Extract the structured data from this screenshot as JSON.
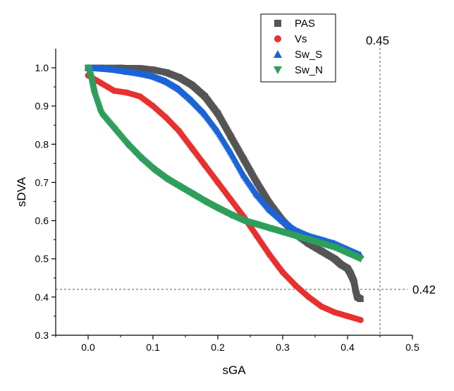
{
  "chart_data": {
    "type": "scatter",
    "title": "",
    "xlabel": "sGA",
    "ylabel": "sDVA",
    "xlim": [
      -0.05,
      0.5
    ],
    "ylim": [
      0.3,
      1.05
    ],
    "xticks": [
      "0.0",
      "0.1",
      "0.2",
      "0.3",
      "0.4",
      "0.5"
    ],
    "yticks": [
      "0.3",
      "0.4",
      "0.5",
      "0.6",
      "0.7",
      "0.8",
      "0.9",
      "1.0"
    ],
    "grid": false,
    "legend_position": "top-right",
    "reference_lines": [
      {
        "orientation": "vertical",
        "value": 0.45,
        "label": "0.45"
      },
      {
        "orientation": "horizontal",
        "value": 0.42,
        "label": "0.42"
      }
    ],
    "series": [
      {
        "name": "PAS",
        "marker": "square",
        "color": "#555555",
        "x": [
          0.0,
          0.02,
          0.05,
          0.08,
          0.1,
          0.12,
          0.14,
          0.16,
          0.18,
          0.2,
          0.22,
          0.24,
          0.26,
          0.28,
          0.3,
          0.32,
          0.34,
          0.36,
          0.38,
          0.39,
          0.4,
          0.405,
          0.41,
          0.412,
          0.415,
          0.42
        ],
        "y": [
          1.0,
          1.0,
          1.0,
          0.999,
          0.995,
          0.988,
          0.975,
          0.955,
          0.925,
          0.88,
          0.82,
          0.76,
          0.7,
          0.645,
          0.6,
          0.565,
          0.54,
          0.52,
          0.5,
          0.485,
          0.475,
          0.46,
          0.44,
          0.42,
          0.4,
          0.395
        ]
      },
      {
        "name": "Vs",
        "marker": "circle",
        "color": "#e8302f",
        "x": [
          0.0,
          0.02,
          0.04,
          0.06,
          0.08,
          0.1,
          0.12,
          0.14,
          0.16,
          0.18,
          0.2,
          0.22,
          0.24,
          0.26,
          0.28,
          0.3,
          0.32,
          0.34,
          0.36,
          0.38,
          0.4,
          0.42
        ],
        "y": [
          0.98,
          0.96,
          0.94,
          0.935,
          0.925,
          0.9,
          0.87,
          0.835,
          0.79,
          0.745,
          0.7,
          0.655,
          0.61,
          0.56,
          0.51,
          0.465,
          0.43,
          0.4,
          0.375,
          0.36,
          0.35,
          0.34
        ]
      },
      {
        "name": "Sw_S",
        "marker": "triangle-up",
        "color": "#1b64d8",
        "x": [
          0.0,
          0.02,
          0.04,
          0.06,
          0.08,
          0.1,
          0.12,
          0.14,
          0.16,
          0.18,
          0.2,
          0.22,
          0.24,
          0.26,
          0.28,
          0.3,
          0.32,
          0.34,
          0.36,
          0.38,
          0.4,
          0.42
        ],
        "y": [
          1.0,
          0.998,
          0.995,
          0.99,
          0.985,
          0.978,
          0.965,
          0.945,
          0.915,
          0.88,
          0.835,
          0.78,
          0.72,
          0.67,
          0.63,
          0.6,
          0.575,
          0.56,
          0.55,
          0.54,
          0.525,
          0.51
        ]
      },
      {
        "name": "Sw_N",
        "marker": "triangle-down",
        "color": "#2e9e5b",
        "x": [
          0.0,
          0.005,
          0.01,
          0.02,
          0.04,
          0.06,
          0.08,
          0.1,
          0.12,
          0.14,
          0.16,
          0.18,
          0.2,
          0.22,
          0.24,
          0.26,
          0.28,
          0.3,
          0.32,
          0.34,
          0.36,
          0.38,
          0.4,
          0.42
        ],
        "y": [
          1.0,
          0.97,
          0.93,
          0.88,
          0.84,
          0.8,
          0.765,
          0.735,
          0.71,
          0.69,
          0.67,
          0.65,
          0.632,
          0.615,
          0.6,
          0.59,
          0.58,
          0.57,
          0.56,
          0.55,
          0.54,
          0.53,
          0.515,
          0.5
        ]
      }
    ]
  }
}
